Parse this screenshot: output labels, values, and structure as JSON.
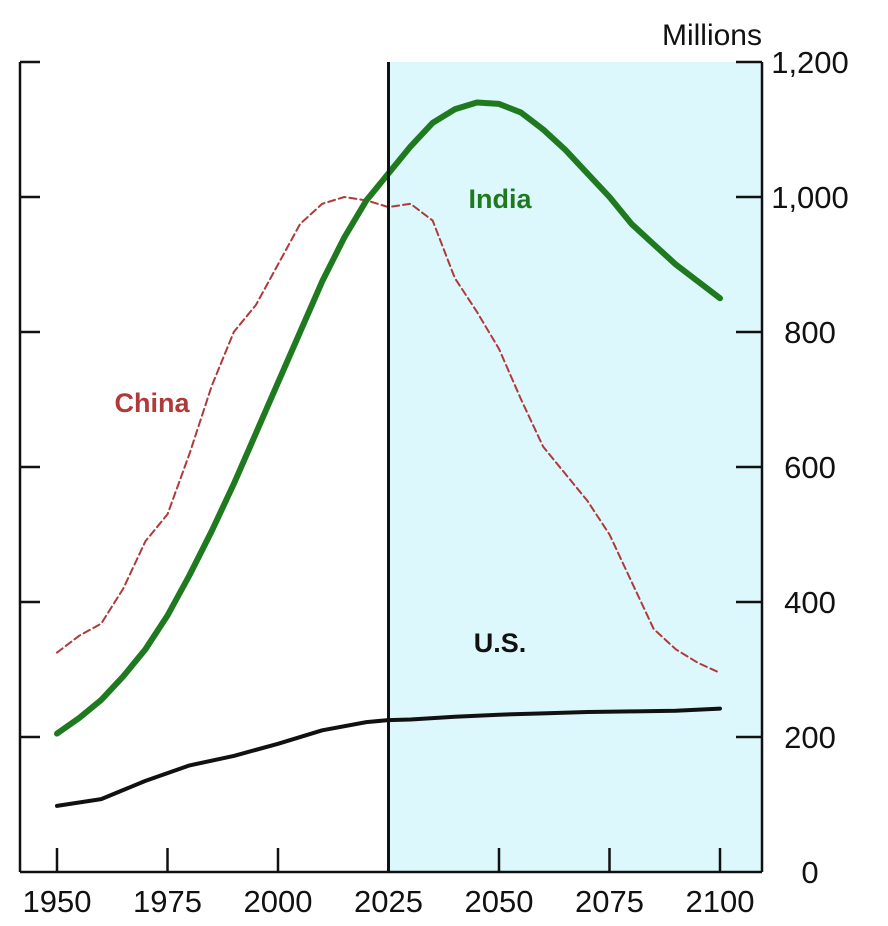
{
  "chart_data": {
    "type": "line",
    "ylabel": "Millions",
    "x_ticks": [
      1950,
      1975,
      2000,
      2025,
      2050,
      2075,
      2100
    ],
    "x_tick_labels": [
      "1950",
      "1975",
      "2000",
      "2025",
      "2050",
      "2075",
      "2100"
    ],
    "y_ticks": [
      0,
      200,
      400,
      600,
      800,
      1000,
      1200
    ],
    "y_tick_labels": [
      "0",
      "200",
      "400",
      "600",
      "800",
      "1,000",
      "1,200"
    ],
    "xlim": [
      1950,
      2100
    ],
    "ylim": [
      0,
      1200
    ],
    "divider_year": 2025,
    "shaded_range": [
      2025,
      2100
    ],
    "series": [
      {
        "name": "China",
        "color": "#b03a3a",
        "style": "dashed",
        "x": [
          1950,
          1955,
          1960,
          1965,
          1970,
          1975,
          1980,
          1985,
          1990,
          1995,
          2000,
          2005,
          2010,
          2015,
          2020,
          2025,
          2030,
          2035,
          2040,
          2045,
          2050,
          2055,
          2060,
          2065,
          2070,
          2075,
          2080,
          2085,
          2090,
          2095,
          2100
        ],
        "values": [
          325,
          350,
          368,
          420,
          490,
          530,
          620,
          720,
          800,
          840,
          900,
          960,
          990,
          1000,
          995,
          985,
          990,
          965,
          880,
          830,
          775,
          700,
          630,
          590,
          550,
          500,
          430,
          360,
          330,
          310,
          295
        ]
      },
      {
        "name": "India",
        "color": "#1f7a1f",
        "style": "solid",
        "x": [
          1950,
          1955,
          1960,
          1965,
          1970,
          1975,
          1980,
          1985,
          1990,
          1995,
          2000,
          2005,
          2010,
          2015,
          2020,
          2025,
          2030,
          2035,
          2040,
          2045,
          2050,
          2055,
          2060,
          2065,
          2070,
          2075,
          2080,
          2085,
          2090,
          2095,
          2100
        ],
        "values": [
          205,
          228,
          255,
          290,
          330,
          380,
          440,
          505,
          575,
          650,
          725,
          800,
          875,
          940,
          995,
          1035,
          1075,
          1110,
          1130,
          1140,
          1138,
          1125,
          1100,
          1070,
          1035,
          1000,
          960,
          930,
          900,
          875,
          850
        ]
      },
      {
        "name": "U.S.",
        "color": "#111111",
        "style": "solid",
        "x": [
          1950,
          1960,
          1970,
          1980,
          1990,
          2000,
          2010,
          2020,
          2025,
          2030,
          2040,
          2050,
          2060,
          2070,
          2080,
          2090,
          2100
        ],
        "values": [
          98,
          108,
          135,
          158,
          172,
          190,
          210,
          222,
          225,
          226,
          230,
          233,
          235,
          237,
          238,
          239,
          242
        ]
      }
    ],
    "annotations": [
      {
        "text": "China",
        "color": "#b03a3a"
      },
      {
        "text": "India",
        "color": "#1f7a1f"
      },
      {
        "text": "U.S.",
        "color": "#111111"
      }
    ],
    "shade_color": "#dcf8fc",
    "grid": false,
    "legend": "none"
  }
}
